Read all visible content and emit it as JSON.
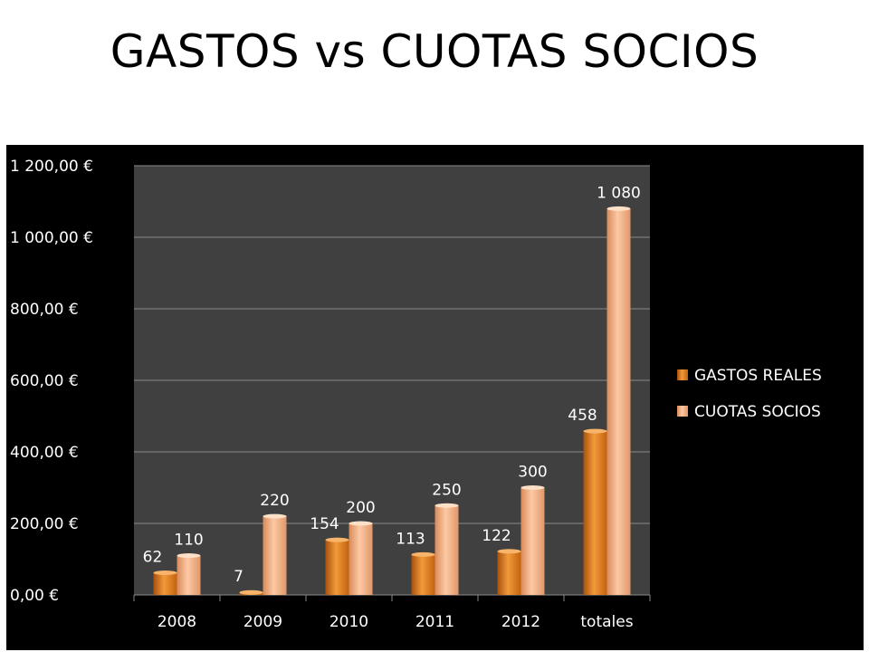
{
  "slide": {
    "title": "GASTOS vs CUOTAS SOCIOS"
  },
  "chart_data": {
    "type": "bar",
    "title": "",
    "xlabel": "",
    "ylabel": "",
    "categories": [
      "2008",
      "2009",
      "2010",
      "2011",
      "2012",
      "totales"
    ],
    "series": [
      {
        "name": "GASTOS REALES",
        "values": [
          62,
          7,
          154,
          113,
          122,
          458
        ],
        "labels": [
          "62",
          "7",
          "154",
          "113",
          "122",
          "458"
        ],
        "color": "#e8821e"
      },
      {
        "name": "CUOTAS SOCIOS",
        "values": [
          110,
          220,
          200,
          250,
          300,
          1080
        ],
        "labels": [
          "110",
          "220",
          "200",
          "250",
          "300",
          "1 080"
        ],
        "color": "#f5b184"
      }
    ],
    "ylim": [
      0,
      1200
    ],
    "yticks": [
      0,
      200,
      400,
      600,
      800,
      1000,
      1200
    ],
    "ytick_labels": [
      "0,00 €",
      "200,00 €",
      "400,00 €",
      "600,00 €",
      "800,00 €",
      "1 000,00 €",
      "1 200,00 €"
    ],
    "grid": true,
    "legend_position": "right",
    "background": "#000000",
    "plot_background": "#404040"
  }
}
